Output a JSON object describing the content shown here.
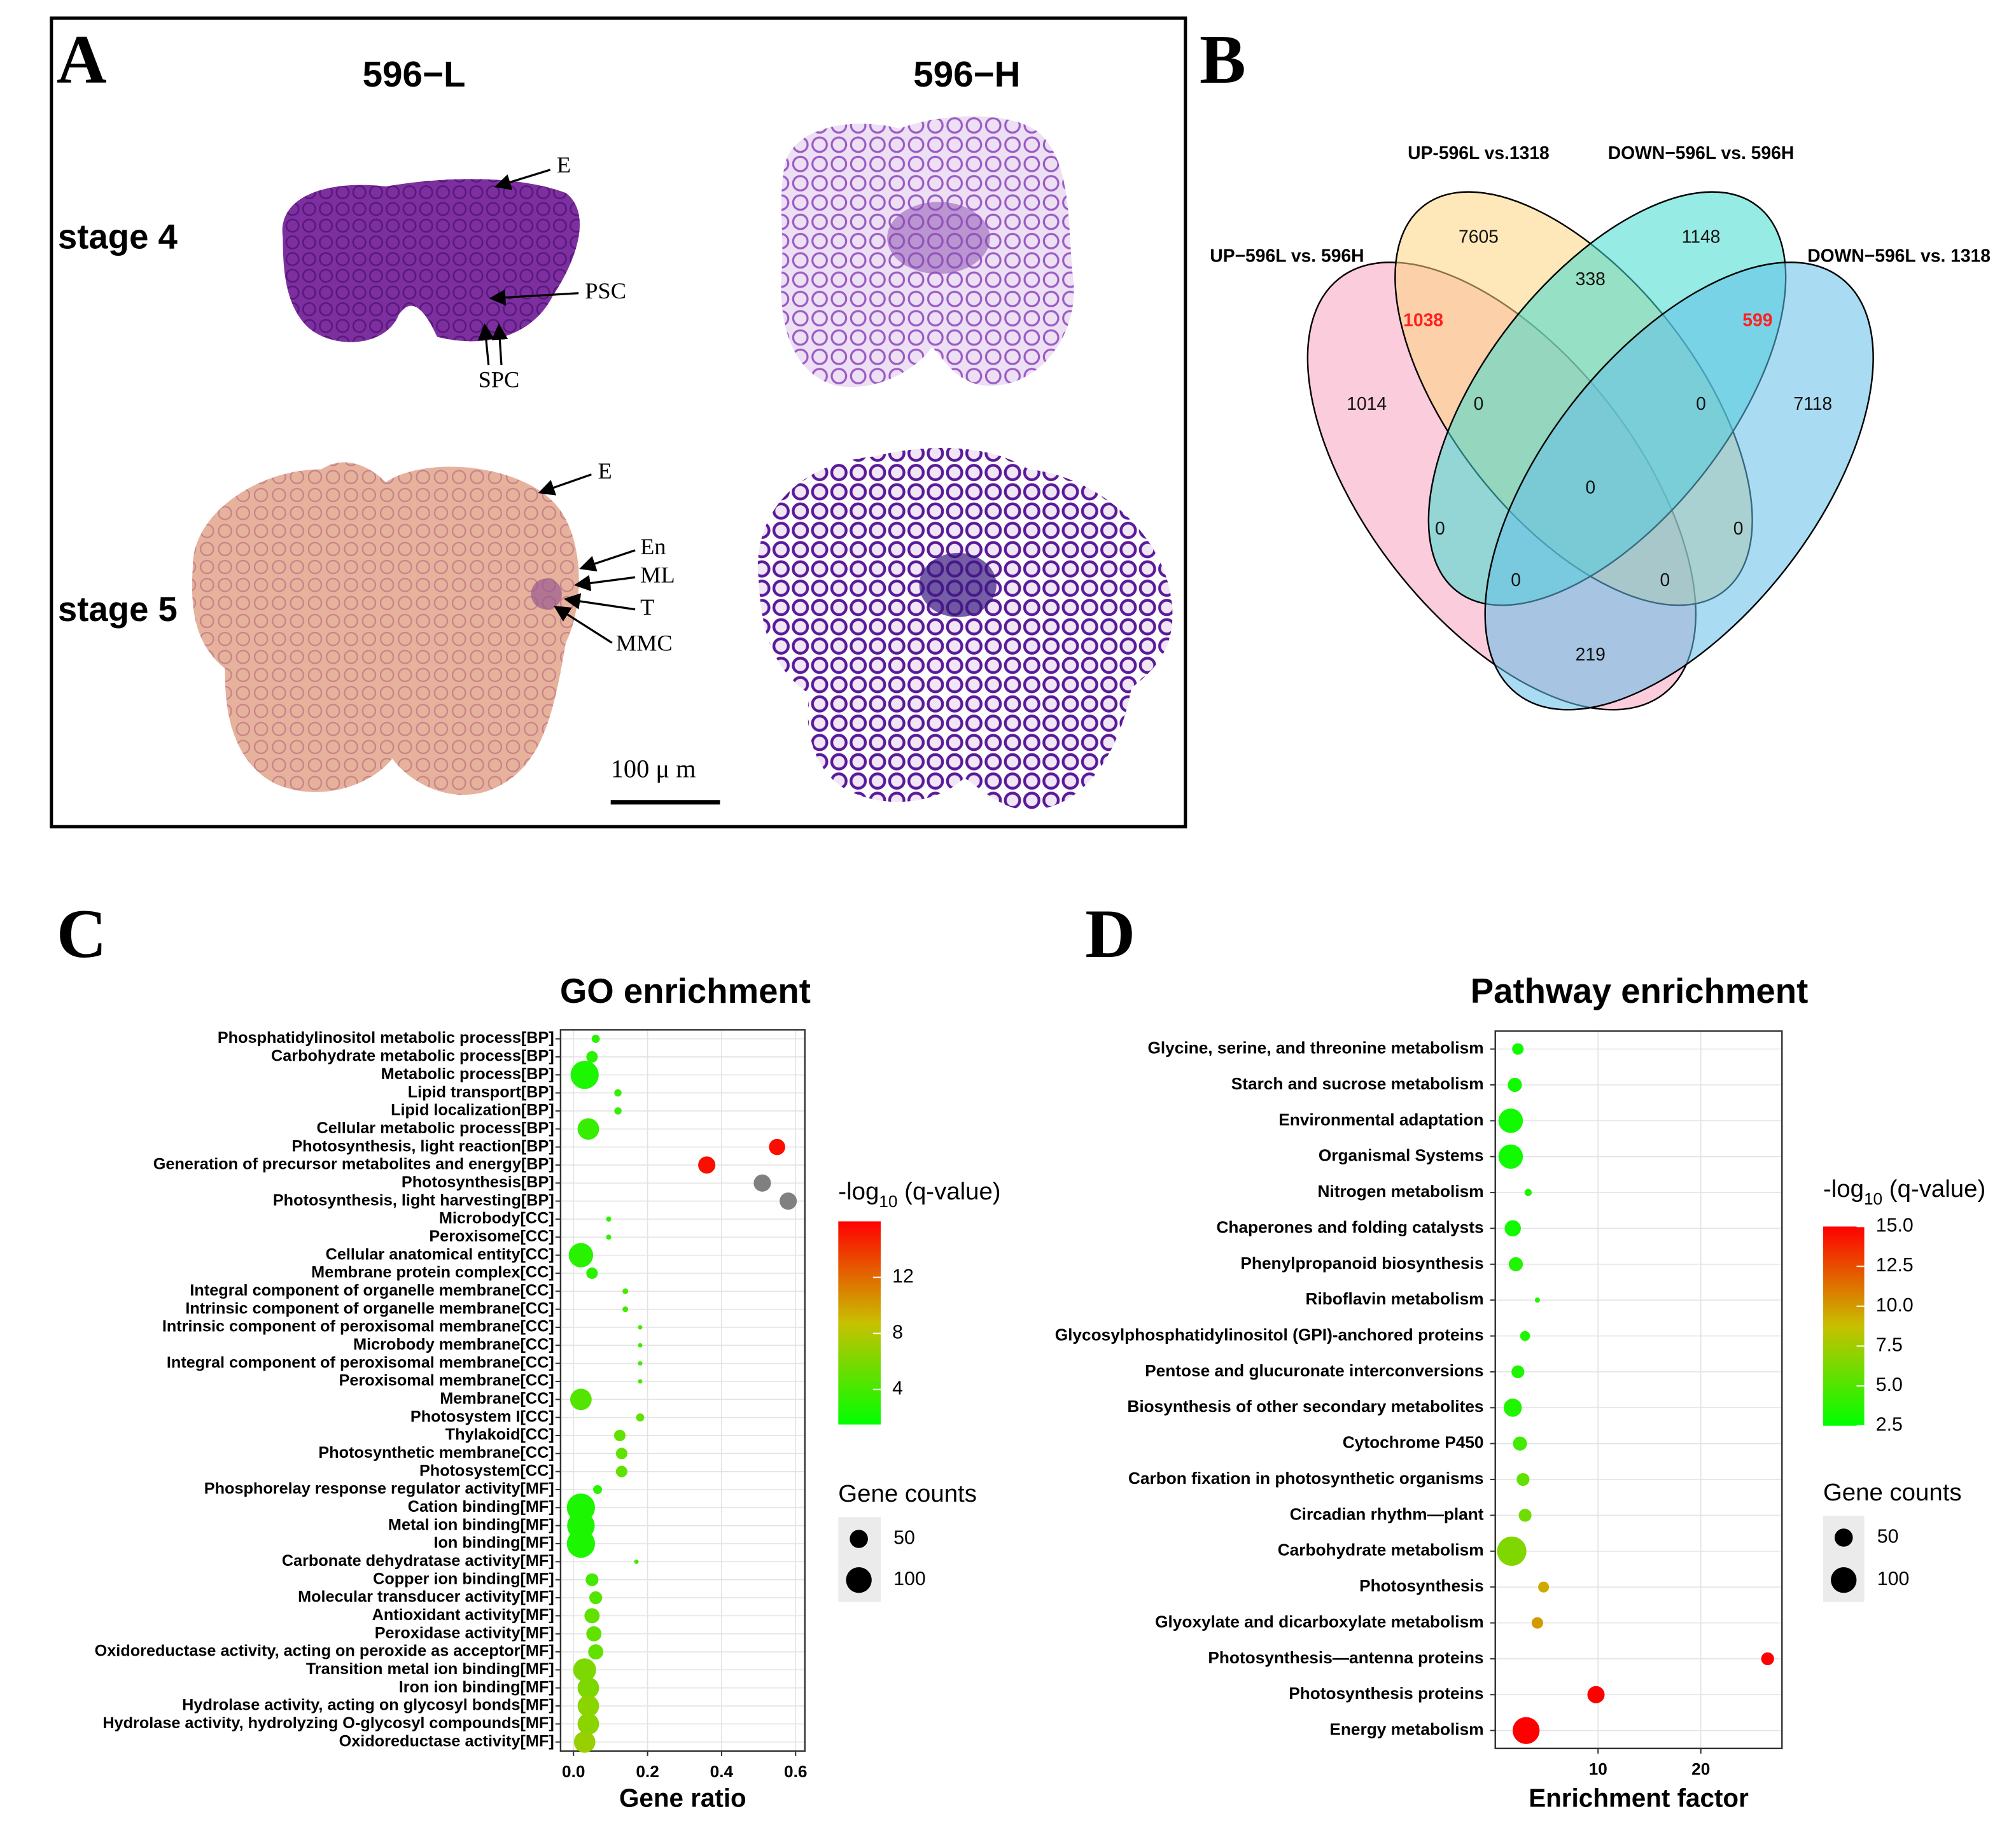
{
  "panel_labels": [
    "A",
    "B",
    "C",
    "D"
  ],
  "micrograph": {
    "columns": [
      "596−L",
      "596−H"
    ],
    "rows": [
      "stage 4",
      "stage 5"
    ],
    "stage4_labels": [
      "E",
      "PSC",
      "SPC"
    ],
    "stage5_labels": [
      "E",
      "En",
      "ML",
      "T",
      "MMC"
    ],
    "scale_bar": "100 μ m"
  },
  "venn": {
    "sets": [
      {
        "name": "UP−596L vs. 596H",
        "color": "#f7a3c0"
      },
      {
        "name": "UP-596L vs.1318",
        "color": "#fdd47e"
      },
      {
        "name": "DOWN−596L vs. 596H",
        "color": "#3fdcd0"
      },
      {
        "name": "DOWN−596L vs. 1318",
        "color": "#62bfe8"
      }
    ],
    "counts": [
      7605,
      1148,
      338,
      1038,
      599,
      1014,
      0,
      0,
      7118,
      0,
      0,
      0,
      0,
      0,
      219
    ],
    "highlight": [
      3,
      4
    ],
    "highlight_color": "#ff2020"
  },
  "chart_data": [
    {
      "type": "bubble",
      "title": "GO enrichment",
      "x_label": "Gene ratio",
      "categories": [
        "Phosphatidylinositol metabolic process[BP]",
        "Carbohydrate metabolic process[BP]",
        "Metabolic process[BP]",
        "Lipid transport[BP]",
        "Lipid localization[BP]",
        "Cellular metabolic process[BP]",
        "Photosynthesis, light reaction[BP]",
        "Generation of precursor metabolites and energy[BP]",
        "Photosynthesis[BP]",
        "Photosynthesis, light harvesting[BP]",
        "Microbody[CC]",
        "Peroxisome[CC]",
        "Cellular anatomical entity[CC]",
        "Membrane protein complex[CC]",
        "Integral component of organelle membrane[CC]",
        "Intrinsic component of organelle membrane[CC]",
        "Intrinsic component of peroxisomal membrane[CC]",
        "Microbody membrane[CC]",
        "Integral component of peroxisomal membrane[CC]",
        "Peroxisomal membrane[CC]",
        "Membrane[CC]",
        "Photosystem I[CC]",
        "Thylakoid[CC]",
        "Photosynthetic membrane[CC]",
        "Photosystem[CC]",
        "Phosphorelay response regulator activity[MF]",
        "Cation binding[MF]",
        "Metal ion binding[MF]",
        "Ion binding[MF]",
        "Carbonate dehydratase activity[MF]",
        "Copper ion binding[MF]",
        "Molecular transducer activity[MF]",
        "Antioxidant activity[MF]",
        "Peroxidase activity[MF]",
        "Oxidoreductase activity, acting on peroxide as acceptor[MF]",
        "Transition metal ion binding[MF]",
        "Iron ion binding[MF]",
        "Hydrolase activity, acting on glycosyl bonds[MF]",
        "Hydrolase activity, hydrolyzing O-glycosyl compounds[MF]",
        "Oxidoreductase activity[MF]"
      ],
      "x": [
        0.06,
        0.05,
        0.03,
        0.12,
        0.12,
        0.04,
        0.55,
        0.36,
        0.51,
        0.58,
        0.095,
        0.095,
        0.02,
        0.05,
        0.14,
        0.14,
        0.18,
        0.18,
        0.18,
        0.18,
        0.02,
        0.18,
        0.125,
        0.13,
        0.13,
        0.065,
        0.02,
        0.02,
        0.02,
        0.17,
        0.05,
        0.06,
        0.05,
        0.055,
        0.06,
        0.03,
        0.04,
        0.04,
        0.04,
        0.03
      ],
      "color_values": [
        3,
        3,
        2.5,
        3.5,
        3.5,
        3.5,
        15.5,
        15.5,
        17,
        17,
        3,
        3,
        3,
        3,
        4,
        4,
        4,
        4,
        4,
        4,
        4.5,
        5,
        5,
        5,
        5,
        3,
        2.5,
        2.5,
        2.5,
        4,
        4,
        4.5,
        5,
        5,
        5,
        6,
        6,
        6.5,
        6.5,
        7
      ],
      "sizes": [
        10,
        20,
        120,
        8,
        8,
        70,
        40,
        45,
        45,
        45,
        4,
        4,
        90,
        20,
        5,
        5,
        3,
        3,
        3,
        3,
        70,
        10,
        20,
        20,
        20,
        12,
        120,
        115,
        120,
        3,
        25,
        25,
        35,
        35,
        35,
        80,
        70,
        70,
        70,
        70
      ],
      "xlim": [
        -0.035,
        0.625
      ],
      "xticks": [
        {
          "value": 0,
          "label": "0.0"
        },
        0.2,
        0.4,
        0.6
      ],
      "grid": true,
      "colorbar_title": [
        "-log",
        "10",
        " (q-value)"
      ],
      "colorlim": [
        1.5,
        16
      ],
      "colorbar_ticks": [
        4,
        8,
        12
      ],
      "colors": [
        "#00ff00",
        "#c8c000",
        "#ff0000"
      ],
      "na_color": "#808080",
      "size_title": "Gene counts",
      "size_ticks": [
        50,
        100
      ]
    },
    {
      "type": "bubble",
      "title": "Pathway enrichment",
      "x_label": "Enrichment factor",
      "categories": [
        "Glycine, serine, and threonine metabolism",
        "Starch and sucrose metabolism",
        "Environmental adaptation",
        "Organismal Systems",
        "Nitrogen metabolism",
        "Chaperones and folding catalysts",
        "Phenylpropanoid biosynthesis",
        "Riboflavin metabolism",
        "Glycosylphosphatidylinositol (GPI)-anchored proteins",
        "Pentose and glucuronate interconversions",
        "Biosynthesis of other secondary metabolites",
        "Cytochrome P450",
        "Carbon fixation in photosynthetic organisms",
        "Circadian rhythm—plant",
        "Carbohydrate metabolism",
        "Photosynthesis",
        "Glyoxylate and dicarboxylate metabolism",
        "Photosynthesis—antenna proteins",
        "Photosynthesis proteins",
        "Energy metabolism"
      ],
      "x": [
        2.2,
        1.9,
        1.5,
        1.5,
        3.2,
        1.7,
        2.0,
        4.1,
        2.9,
        2.2,
        1.7,
        2.4,
        2.7,
        2.9,
        1.6,
        4.7,
        4.1,
        26.5,
        9.8,
        3.0
      ],
      "color_values": [
        3,
        3,
        3,
        3,
        3.5,
        3,
        3.5,
        3.5,
        3.5,
        3.5,
        3.5,
        4.5,
        5.5,
        6,
        6.5,
        9.5,
        10,
        15,
        15,
        15
      ],
      "sizes": [
        20,
        30,
        90,
        90,
        8,
        40,
        30,
        4,
        15,
        25,
        50,
        30,
        25,
        25,
        130,
        18,
        20,
        25,
        45,
        110
      ],
      "xlim": [
        0,
        27.9
      ],
      "xticks": [
        10,
        20
      ],
      "grid": true,
      "colorbar_title": [
        "-log",
        "10",
        " (q-value)"
      ],
      "colorlim": [
        2.5,
        15
      ],
      "colorbar_ticks": [
        {
          "value": 15,
          "label": "15.0"
        },
        12.5,
        {
          "value": 10,
          "label": "10.0"
        },
        7.5,
        {
          "value": 5,
          "label": "5.0"
        },
        2.5
      ],
      "colors": [
        "#00ff00",
        "#c8c000",
        "#ff0000"
      ],
      "na_color": "#808080",
      "size_title": "Gene counts",
      "size_ticks": [
        50,
        100
      ]
    }
  ]
}
